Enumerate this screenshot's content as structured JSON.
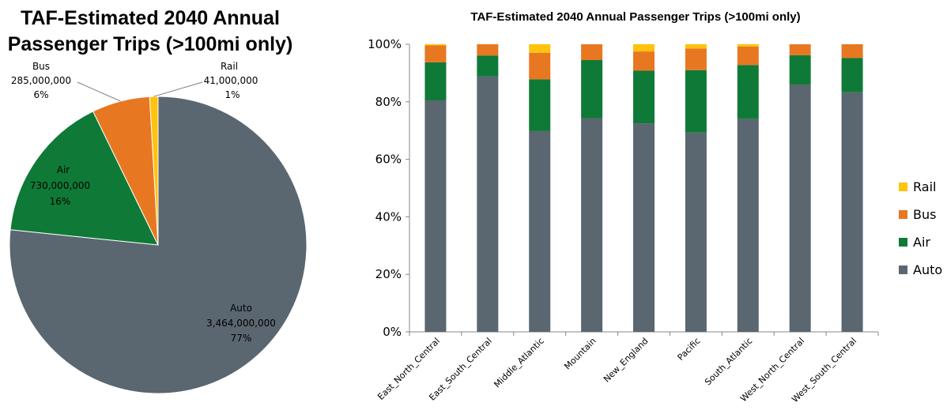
{
  "chart_data": [
    {
      "type": "pie",
      "title_line1": "TAF-Estimated 2040 Annual",
      "title_line2": "Passenger Trips (>100mi only)",
      "slices": [
        {
          "name": "Auto",
          "value": 3464000000,
          "value_label": "3,464,000,000",
          "pct_label": "77%",
          "color": "#5a6670"
        },
        {
          "name": "Air",
          "value": 730000000,
          "value_label": "730,000,000",
          "pct_label": "16%",
          "color": "#0f7a37"
        },
        {
          "name": "Bus",
          "value": 285000000,
          "value_label": "285,000,000",
          "pct_label": "6%",
          "color": "#e87722"
        },
        {
          "name": "Rail",
          "value": 41000000,
          "value_label": "41,000,000",
          "pct_label": "1%",
          "color": "#ffc20e"
        }
      ]
    },
    {
      "type": "bar",
      "stacked": "percent",
      "title": "TAF-Estimated 2040 Annual Passenger Trips (>100mi only)",
      "categories": [
        "East_North_Central",
        "East_South_Central",
        "Middle_Atlantic",
        "Mountain",
        "New_England",
        "Pacific",
        "South_Atlantic",
        "West_North_Central",
        "West_South_Central"
      ],
      "series": [
        {
          "name": "Auto",
          "color": "#5a6670",
          "values": [
            80.5,
            88.8,
            69.8,
            74.3,
            72.5,
            69.3,
            74.0,
            86.0,
            83.3
          ]
        },
        {
          "name": "Air",
          "color": "#0f7a37",
          "values": [
            13.2,
            7.3,
            18.0,
            20.2,
            18.3,
            21.7,
            18.8,
            10.2,
            11.9
          ]
        },
        {
          "name": "Bus",
          "color": "#e87722",
          "values": [
            5.9,
            3.9,
            9.2,
            5.5,
            6.7,
            7.5,
            6.4,
            3.8,
            4.8
          ]
        },
        {
          "name": "Rail",
          "color": "#ffc20e",
          "values": [
            0.4,
            0.0,
            3.0,
            0.0,
            2.5,
            1.5,
            0.8,
            0.0,
            0.0
          ]
        }
      ],
      "yticks": [
        "0%",
        "20%",
        "40%",
        "60%",
        "80%",
        "100%"
      ],
      "ylim": [
        0,
        100
      ],
      "grid": false,
      "legend_position": "right",
      "legend_order": [
        "Rail",
        "Bus",
        "Air",
        "Auto"
      ]
    }
  ]
}
